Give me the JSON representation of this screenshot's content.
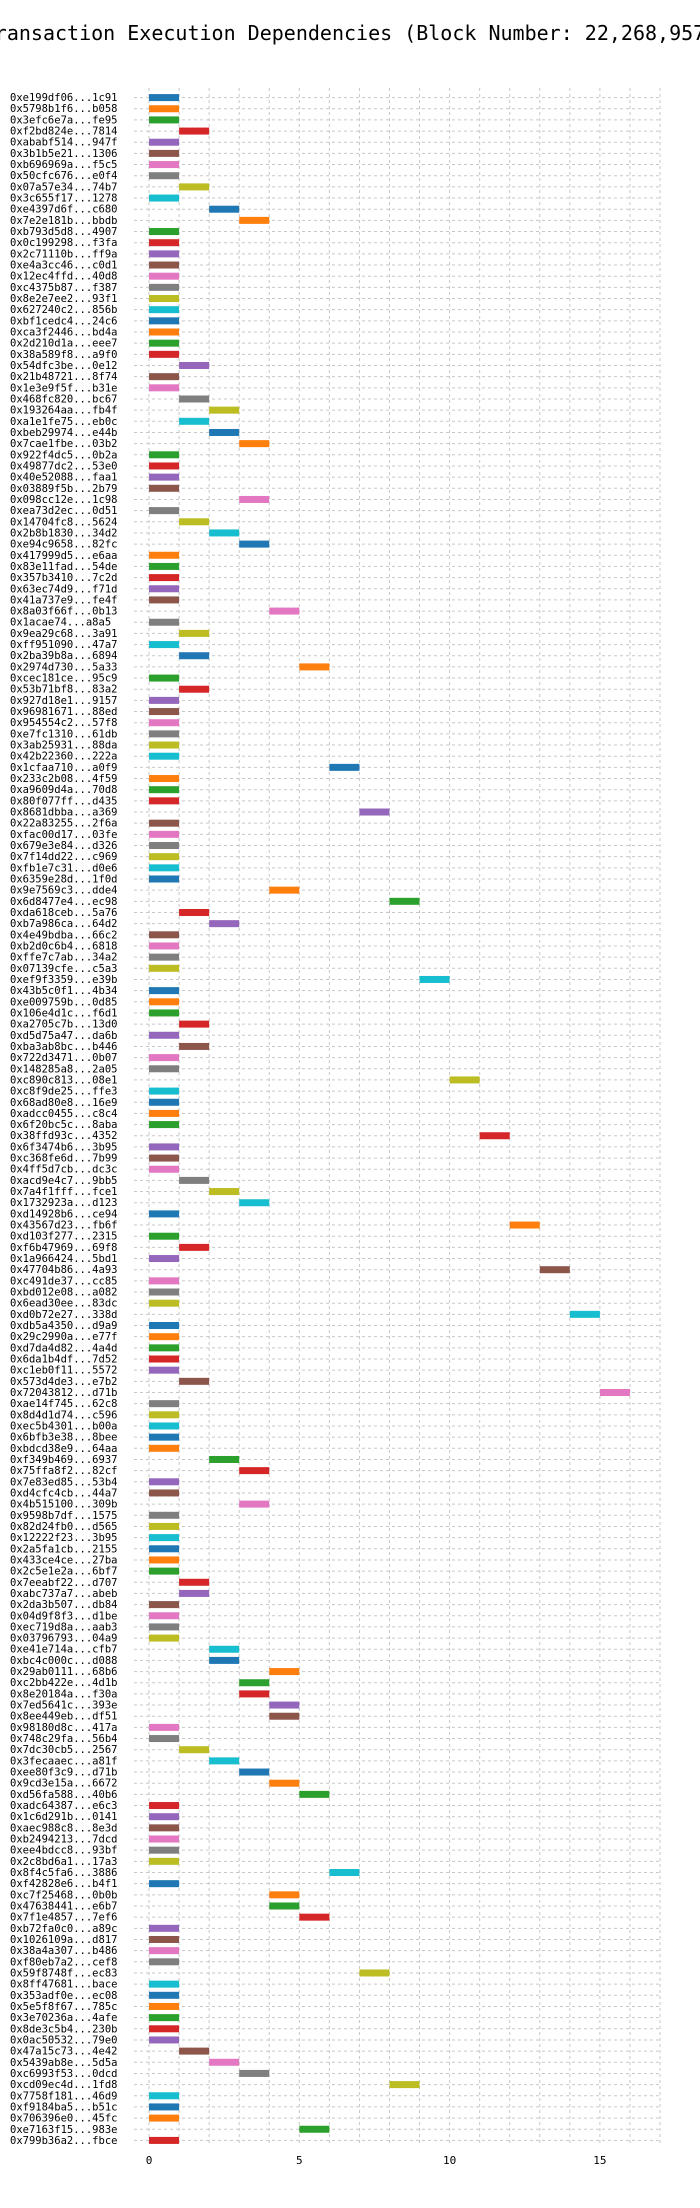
{
  "chart_data": {
    "type": "bar",
    "title": "Transaction Execution Dependencies (Block Number: 22,268,957)",
    "xlabel": "",
    "ylabel": "",
    "xlim": [
      -0.5,
      17
    ],
    "x_ticks": [
      0,
      5,
      10,
      15
    ],
    "grid": true,
    "colors": [
      "#1f77b4",
      "#ff7f0e",
      "#2ca02c",
      "#d62728",
      "#9467bd",
      "#8c564b",
      "#e377c2",
      "#7f7f7f",
      "#bcbd22",
      "#17becf"
    ],
    "rows": [
      {
        "label": "0xe199df06...1c91",
        "start": 0
      },
      {
        "label": "0x5798b1f6...b058",
        "start": 0
      },
      {
        "label": "0x3efc6e7a...fe95",
        "start": 0
      },
      {
        "label": "0xf2bd824e...7814",
        "start": 1
      },
      {
        "label": "0xababf514...947f",
        "start": 0
      },
      {
        "label": "0x3b1b5e21...1306",
        "start": 0
      },
      {
        "label": "0xb696969a...f5c5",
        "start": 0
      },
      {
        "label": "0x50cfc676...e0f4",
        "start": 0
      },
      {
        "label": "0x07a57e34...74b7",
        "start": 1
      },
      {
        "label": "0x3c655f17...1278",
        "start": 0
      },
      {
        "label": "0xe4397d6f...c680",
        "start": 2
      },
      {
        "label": "0x7e2e181b...bbdb",
        "start": 3
      },
      {
        "label": "0xb793d5d8...4907",
        "start": 0
      },
      {
        "label": "0x0c199298...f3fa",
        "start": 0
      },
      {
        "label": "0x2c71110b...ff9a",
        "start": 0
      },
      {
        "label": "0xe4a3cc46...c0d1",
        "start": 0
      },
      {
        "label": "0x12ec4ffd...40d8",
        "start": 0
      },
      {
        "label": "0xc4375b87...f387",
        "start": 0
      },
      {
        "label": "0x8e2e7ee2...93f1",
        "start": 0
      },
      {
        "label": "0x627240c2...856b",
        "start": 0
      },
      {
        "label": "0xbf1cedc4...24c6",
        "start": 0
      },
      {
        "label": "0xca3f2446...bd4a",
        "start": 0
      },
      {
        "label": "0x2d210d1a...eee7",
        "start": 0
      },
      {
        "label": "0x38a589f8...a9f0",
        "start": 0
      },
      {
        "label": "0x54dfc3be...0e12",
        "start": 1
      },
      {
        "label": "0x21b48721...8f74",
        "start": 0
      },
      {
        "label": "0x1e3e9f5f...b31e",
        "start": 0
      },
      {
        "label": "0x468fc820...bc67",
        "start": 1
      },
      {
        "label": "0x193264aa...fb4f",
        "start": 2
      },
      {
        "label": "0xa1e1fe75...eb0c",
        "start": 1
      },
      {
        "label": "0xbeb29974...e44b",
        "start": 2
      },
      {
        "label": "0x7cae1fbe...03b2",
        "start": 3
      },
      {
        "label": "0x922f4dc5...0b2a",
        "start": 0
      },
      {
        "label": "0x49877dc2...53e0",
        "start": 0
      },
      {
        "label": "0x40e52088...faa1",
        "start": 0
      },
      {
        "label": "0x03889f5b...2b79",
        "start": 0
      },
      {
        "label": "0x098cc12e...1c98",
        "start": 3
      },
      {
        "label": "0xea73d2ec...0d51",
        "start": 0
      },
      {
        "label": "0x14704fc8...5624",
        "start": 1
      },
      {
        "label": "0x2b8b1830...34d2",
        "start": 2
      },
      {
        "label": "0xe94c9658...82fc",
        "start": 3
      },
      {
        "label": "0x417999d5...e6aa",
        "start": 0
      },
      {
        "label": "0x83e11fad...54de",
        "start": 0
      },
      {
        "label": "0x357b3410...7c2d",
        "start": 0
      },
      {
        "label": "0x63ec74d9...f71d",
        "start": 0
      },
      {
        "label": "0x41a737e9...fe4f",
        "start": 0
      },
      {
        "label": "0x8a03f66f...0b13",
        "start": 4
      },
      {
        "label": "0x1acae74...a8a5",
        "start": 0
      },
      {
        "label": "0x9ea29c68...3a91",
        "start": 1
      },
      {
        "label": "0xff951090...47a7",
        "start": 0
      },
      {
        "label": "0x2ba39b8a...6894",
        "start": 1
      },
      {
        "label": "0x2974d730...5a33",
        "start": 5
      },
      {
        "label": "0xcec181ce...95c9",
        "start": 0
      },
      {
        "label": "0x53b71bf8...83a2",
        "start": 1
      },
      {
        "label": "0x927d18e1...9157",
        "start": 0
      },
      {
        "label": "0x96981671...88ed",
        "start": 0
      },
      {
        "label": "0x954554c2...57f8",
        "start": 0
      },
      {
        "label": "0xe7fc1310...61db",
        "start": 0
      },
      {
        "label": "0x3ab25931...88da",
        "start": 0
      },
      {
        "label": "0x42b22360...222a",
        "start": 0
      },
      {
        "label": "0x1cfaa710...a0f9",
        "start": 6
      },
      {
        "label": "0x233c2b08...4f59",
        "start": 0
      },
      {
        "label": "0xa9609d4a...70d8",
        "start": 0
      },
      {
        "label": "0x80f077ff...d435",
        "start": 0
      },
      {
        "label": "0x8681dbba...a369",
        "start": 7
      },
      {
        "label": "0x22a83255...2f6a",
        "start": 0
      },
      {
        "label": "0xfac00d17...03fe",
        "start": 0
      },
      {
        "label": "0x679e3e84...d326",
        "start": 0
      },
      {
        "label": "0x7f14dd22...c969",
        "start": 0
      },
      {
        "label": "0xfb1e7c31...d0e6",
        "start": 0
      },
      {
        "label": "0x6359e28d...1f0d",
        "start": 0
      },
      {
        "label": "0x9e7569c3...dde4",
        "start": 4
      },
      {
        "label": "0x6d8477e4...ec98",
        "start": 8
      },
      {
        "label": "0xda618ceb...5a76",
        "start": 1
      },
      {
        "label": "0xb7a986ca...64d2",
        "start": 2
      },
      {
        "label": "0x4e49bdba...66c2",
        "start": 0
      },
      {
        "label": "0xb2d0c6b4...6818",
        "start": 0
      },
      {
        "label": "0xffe7c7ab...34a2",
        "start": 0
      },
      {
        "label": "0x07139cfe...c5a3",
        "start": 0
      },
      {
        "label": "0xef9f3359...e39b",
        "start": 9
      },
      {
        "label": "0x43b5c0f1...4b34",
        "start": 0
      },
      {
        "label": "0xe009759b...0d85",
        "start": 0
      },
      {
        "label": "0x106e4d1c...f6d1",
        "start": 0
      },
      {
        "label": "0xa2705c7b...13d0",
        "start": 1
      },
      {
        "label": "0xd5d75a47...da6b",
        "start": 0
      },
      {
        "label": "0xba3ab8bc...b446",
        "start": 1
      },
      {
        "label": "0x722d3471...0b07",
        "start": 0
      },
      {
        "label": "0x148285a8...2a05",
        "start": 0
      },
      {
        "label": "0xc890c813...08e1",
        "start": 10
      },
      {
        "label": "0xc8f9de25...ffe3",
        "start": 0
      },
      {
        "label": "0x68ad80e8...16e9",
        "start": 0
      },
      {
        "label": "0xadcc0455...c8c4",
        "start": 0
      },
      {
        "label": "0x6f20bc5c...8aba",
        "start": 0
      },
      {
        "label": "0x38ffd93c...4352",
        "start": 11
      },
      {
        "label": "0x6f3474b6...3b95",
        "start": 0
      },
      {
        "label": "0xc368fe6d...7b99",
        "start": 0
      },
      {
        "label": "0x4ff5d7cb...dc3c",
        "start": 0
      },
      {
        "label": "0xacd9e4c7...9bb5",
        "start": 1
      },
      {
        "label": "0x7a4f1fff...fce1",
        "start": 2
      },
      {
        "label": "0x1732923a...d123",
        "start": 3
      },
      {
        "label": "0xd14928b6...ce94",
        "start": 0
      },
      {
        "label": "0x43567d23...fb6f",
        "start": 12
      },
      {
        "label": "0xd103f277...2315",
        "start": 0
      },
      {
        "label": "0xf6b47969...69f8",
        "start": 1
      },
      {
        "label": "0x1a966424...5bd1",
        "start": 0
      },
      {
        "label": "0x47704b86...4a93",
        "start": 13
      },
      {
        "label": "0xc491de37...cc85",
        "start": 0
      },
      {
        "label": "0xbd012e08...a082",
        "start": 0
      },
      {
        "label": "0x6ead30ee...83dc",
        "start": 0
      },
      {
        "label": "0xd0b72e27...338d",
        "start": 14
      },
      {
        "label": "0xdb5a4350...d9a9",
        "start": 0
      },
      {
        "label": "0x29c2990a...e77f",
        "start": 0
      },
      {
        "label": "0xd7da4d82...4a4d",
        "start": 0
      },
      {
        "label": "0x6da1b4df...7d52",
        "start": 0
      },
      {
        "label": "0xc1eb0f11...5572",
        "start": 0
      },
      {
        "label": "0x573d4de3...e7b2",
        "start": 1
      },
      {
        "label": "0x72043812...d71b",
        "start": 15
      },
      {
        "label": "0xae14f745...62c8",
        "start": 0
      },
      {
        "label": "0x8d4d1d74...c596",
        "start": 0
      },
      {
        "label": "0xec5b4301...b00a",
        "start": 0
      },
      {
        "label": "0x6bfb3e38...8bee",
        "start": 0
      },
      {
        "label": "0xbdcd38e9...64aa",
        "start": 0
      },
      {
        "label": "0xf349b469...6937",
        "start": 2
      },
      {
        "label": "0x75ffa8f2...82cf",
        "start": 3
      },
      {
        "label": "0x7e83ed85...53b4",
        "start": 0
      },
      {
        "label": "0xd4cfc4cb...44a7",
        "start": 0
      },
      {
        "label": "0x4b515100...309b",
        "start": 3
      },
      {
        "label": "0x9598b7df...1575",
        "start": 0
      },
      {
        "label": "0x82d24fb0...d565",
        "start": 0
      },
      {
        "label": "0x12222f23...3b95",
        "start": 0
      },
      {
        "label": "0x2a5fa1cb...2155",
        "start": 0
      },
      {
        "label": "0x433ce4ce...27ba",
        "start": 0
      },
      {
        "label": "0x2c5e1e2a...6bf7",
        "start": 0
      },
      {
        "label": "0x7eeabf22...d707",
        "start": 1
      },
      {
        "label": "0xabc737a7...abeb",
        "start": 1
      },
      {
        "label": "0x2da3b507...db84",
        "start": 0
      },
      {
        "label": "0x04d9f8f3...d1be",
        "start": 0
      },
      {
        "label": "0xec719d8a...aab3",
        "start": 0
      },
      {
        "label": "0x03796793...04a9",
        "start": 0
      },
      {
        "label": "0xe41e714a...cfb7",
        "start": 2
      },
      {
        "label": "0xbc4c000c...d088",
        "start": 2
      },
      {
        "label": "0x29ab0111...68b6",
        "start": 4
      },
      {
        "label": "0xc2bb422e...4d1b",
        "start": 3
      },
      {
        "label": "0x8e20184a...f30a",
        "start": 3
      },
      {
        "label": "0x7ed5641c...393e",
        "start": 4
      },
      {
        "label": "0x8ee449eb...df51",
        "start": 4
      },
      {
        "label": "0x98180d8c...417a",
        "start": 0
      },
      {
        "label": "0x748c29fa...56b4",
        "start": 0
      },
      {
        "label": "0x7dc30cb5...2567",
        "start": 1
      },
      {
        "label": "0x3fecaaec...a81f",
        "start": 2
      },
      {
        "label": "0xee80f3c9...d71b",
        "start": 3
      },
      {
        "label": "0x9cd3e15a...6672",
        "start": 4
      },
      {
        "label": "0xd56fa588...40b6",
        "start": 5
      },
      {
        "label": "0xadc64387...e6c3",
        "start": 0
      },
      {
        "label": "0x1c6d291b...0141",
        "start": 0
      },
      {
        "label": "0xaec988c8...8e3d",
        "start": 0
      },
      {
        "label": "0xb2494213...7dcd",
        "start": 0
      },
      {
        "label": "0xee4bdcc8...93bf",
        "start": 0
      },
      {
        "label": "0x2c8bd6a1...17a3",
        "start": 0
      },
      {
        "label": "0x8f4c5fa6...3886",
        "start": 6
      },
      {
        "label": "0xf42828e6...b4f1",
        "start": 0
      },
      {
        "label": "0xc7f25468...0b0b",
        "start": 4
      },
      {
        "label": "0x47638441...e6b7",
        "start": 4
      },
      {
        "label": "0x7f1e4857...7ef6",
        "start": 5
      },
      {
        "label": "0xb72fa0c0...a89c",
        "start": 0
      },
      {
        "label": "0x1026109a...d817",
        "start": 0
      },
      {
        "label": "0x38a4a307...b486",
        "start": 0
      },
      {
        "label": "0xf80eb7a2...cef8",
        "start": 0
      },
      {
        "label": "0x59f8748f...ec83",
        "start": 7
      },
      {
        "label": "0x8ff47681...bace",
        "start": 0
      },
      {
        "label": "0x353adf0e...ec08",
        "start": 0
      },
      {
        "label": "0x5e5f8f67...785c",
        "start": 0
      },
      {
        "label": "0x3e70236a...4afe",
        "start": 0
      },
      {
        "label": "0x8de3c5b4...230b",
        "start": 0
      },
      {
        "label": "0x0ac50532...79e0",
        "start": 0
      },
      {
        "label": "0x47a15c73...4e42",
        "start": 1
      },
      {
        "label": "0x5439ab8e...5d5a",
        "start": 2
      },
      {
        "label": "0xc6993f53...0dcd",
        "start": 3
      },
      {
        "label": "0xcd09ec4d...1fd8",
        "start": 8
      },
      {
        "label": "0x7758f181...46d9",
        "start": 0
      },
      {
        "label": "0xf9184ba5...b51c",
        "start": 0
      },
      {
        "label": "0x706396e0...45fc",
        "start": 0
      },
      {
        "label": "0xe7163f15...983e",
        "start": 5
      },
      {
        "label": "0x799b36a2...fbce",
        "start": 0
      }
    ]
  }
}
